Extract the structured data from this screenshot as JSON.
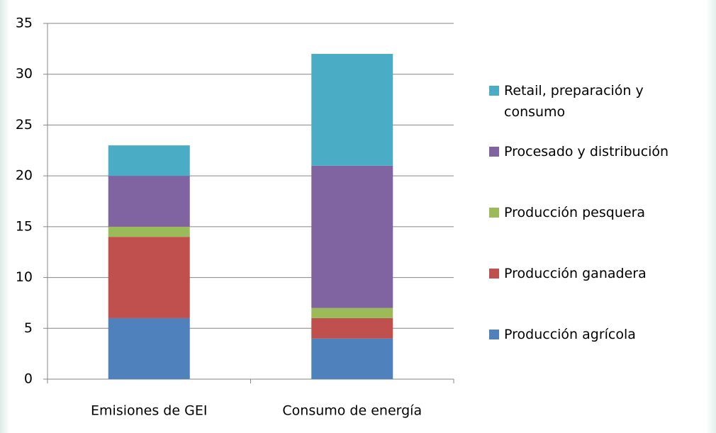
{
  "chart_data": {
    "type": "stacked_bar",
    "categories": [
      "Emisiones de GEI",
      "Consumo de energía"
    ],
    "series": [
      {
        "name": "Producción agrícola",
        "color": "#4f81bd",
        "values": [
          6,
          4
        ]
      },
      {
        "name": "Producción ganadera",
        "color": "#c0504d",
        "values": [
          8,
          2
        ]
      },
      {
        "name": "Producción pesquera",
        "color": "#9bbb59",
        "values": [
          1,
          1
        ]
      },
      {
        "name": "Procesado y distribución",
        "color": "#8064a2",
        "values": [
          5,
          14
        ]
      },
      {
        "name": "Retail, preparación y consumo",
        "color": "#4bacc6",
        "values": [
          3,
          11
        ]
      }
    ],
    "ylim": [
      0,
      35
    ],
    "yticks": [
      0,
      5,
      10,
      15,
      20,
      25,
      30,
      35
    ],
    "grid": true,
    "legend": "right"
  }
}
